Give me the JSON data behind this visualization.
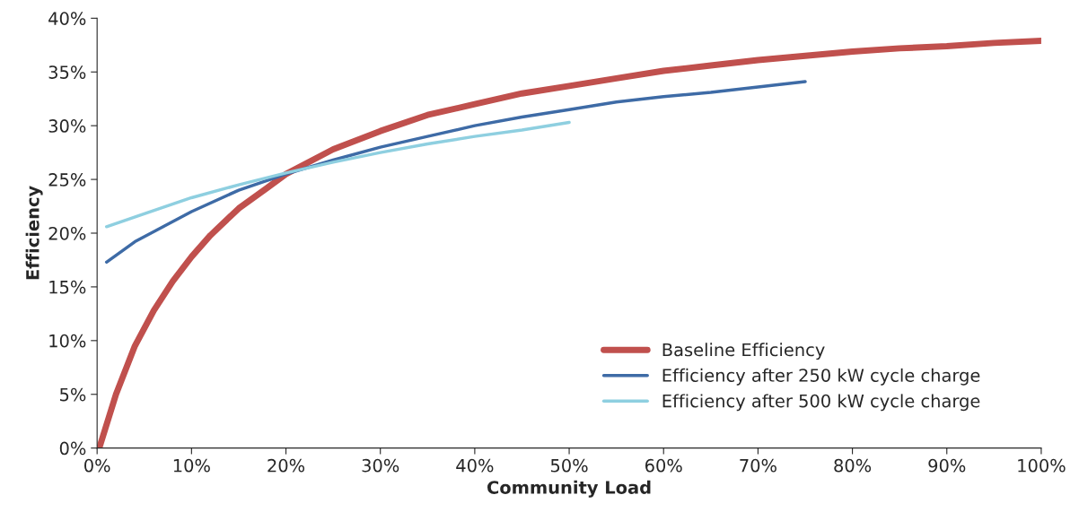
{
  "chart_data": {
    "type": "line",
    "xlabel": "Community Load",
    "ylabel": "Efficiency",
    "xlim": [
      0,
      100
    ],
    "ylim": [
      0,
      40
    ],
    "xticks": [
      {
        "value": 0,
        "label": "0%"
      },
      {
        "value": 10,
        "label": "10%"
      },
      {
        "value": 20,
        "label": "20%"
      },
      {
        "value": 30,
        "label": "30%"
      },
      {
        "value": 40,
        "label": "40%"
      },
      {
        "value": 50,
        "label": "50%"
      },
      {
        "value": 60,
        "label": "60%"
      },
      {
        "value": 70,
        "label": "70%"
      },
      {
        "value": 80,
        "label": "80%"
      },
      {
        "value": 90,
        "label": "90%"
      },
      {
        "value": 100,
        "label": "100%"
      }
    ],
    "yticks": [
      {
        "value": 0,
        "label": "0%"
      },
      {
        "value": 5,
        "label": "5%"
      },
      {
        "value": 10,
        "label": "10%"
      },
      {
        "value": 15,
        "label": "15%"
      },
      {
        "value": 20,
        "label": "20%"
      },
      {
        "value": 25,
        "label": "25%"
      },
      {
        "value": 30,
        "label": "30%"
      },
      {
        "value": 35,
        "label": "35%"
      },
      {
        "value": 40,
        "label": "40%"
      }
    ],
    "legend": "bottom right",
    "grid": false,
    "marker": "none",
    "line_style": "solid",
    "series": [
      {
        "name": "Baseline Efficiency",
        "color": "#c0504d",
        "x": [
          0.3,
          2,
          4,
          6,
          8,
          10,
          12,
          15,
          18,
          20,
          25,
          30,
          35,
          40,
          45,
          50,
          55,
          60,
          65,
          70,
          75,
          80,
          85,
          90,
          95,
          100
        ],
        "values": [
          0.2,
          5,
          9.5,
          12.8,
          15.5,
          17.8,
          19.8,
          22.3,
          24.2,
          25.5,
          27.8,
          29.5,
          31,
          32,
          33,
          33.7,
          34.4,
          35.1,
          35.6,
          36.1,
          36.5,
          36.9,
          37.2,
          37.4,
          37.7,
          37.9
        ]
      },
      {
        "name": "Efficiency after 250 kW cycle charge",
        "color": "#3e6ba6",
        "x": [
          1,
          4,
          7,
          10,
          15,
          20,
          25,
          30,
          35,
          40,
          45,
          50,
          55,
          60,
          65,
          70,
          75
        ],
        "values": [
          17.3,
          19.2,
          20.6,
          22,
          24,
          25.5,
          26.8,
          28,
          29,
          30,
          30.8,
          31.5,
          32.2,
          32.7,
          33.1,
          33.6,
          34.1
        ]
      },
      {
        "name": "Efficiency after 500 kW cycle charge",
        "color": "#8ecfe0",
        "x": [
          1,
          5,
          10,
          15,
          20,
          25,
          30,
          35,
          40,
          45,
          50
        ],
        "values": [
          20.6,
          21.8,
          23.3,
          24.5,
          25.6,
          26.6,
          27.5,
          28.3,
          29,
          29.6,
          30.3
        ]
      }
    ]
  }
}
